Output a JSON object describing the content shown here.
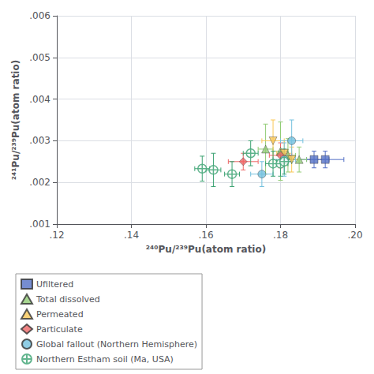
{
  "chart_data": {
    "type": "scatter",
    "xlabel": "²⁴⁰Pu/²³⁹Pu(atom ratio)",
    "ylabel": "²⁴¹Pu/²³⁹Pu(atom ratio)",
    "xlim": [
      0.12,
      0.2
    ],
    "ylim": [
      0.001,
      0.006
    ],
    "xticks": [
      {
        "value": 0.12,
        "label": ".12"
      },
      {
        "value": 0.14,
        "label": ".14"
      },
      {
        "value": 0.16,
        "label": ".16"
      },
      {
        "value": 0.18,
        "label": ".18"
      },
      {
        "value": 0.2,
        "label": ".20"
      }
    ],
    "yticks": [
      {
        "value": 0.001,
        "label": ".001"
      },
      {
        "value": 0.002,
        "label": ".002"
      },
      {
        "value": 0.003,
        "label": ".003"
      },
      {
        "value": 0.004,
        "label": ".004"
      },
      {
        "value": 0.005,
        "label": ".005"
      },
      {
        "value": 0.006,
        "label": ".006"
      }
    ],
    "grid": true,
    "legend": "bottom",
    "series": [
      {
        "name": "Ufiltered",
        "marker": "square",
        "x": [
          0.189,
          0.192
        ],
        "values": [
          0.00255,
          0.00255
        ],
        "xerr": [
          0.004,
          0.005
        ],
        "yerr": [
          0.0002,
          0.0002
        ]
      },
      {
        "name": "Total dissolved",
        "marker": "triangle-up",
        "x": [
          0.176,
          0.18,
          0.182,
          0.185
        ],
        "values": [
          0.0028,
          0.00275,
          0.00265,
          0.00255
        ],
        "xerr": [
          0.002,
          0.002,
          0.002,
          0.002
        ],
        "yerr": [
          0.0006,
          0.0007,
          0.0004,
          0.0003
        ]
      },
      {
        "name": "Permeated",
        "marker": "triangle-down",
        "x": [
          0.178,
          0.181,
          0.183
        ],
        "values": [
          0.003,
          0.0027,
          0.00255
        ],
        "xerr": [
          0.003,
          0.002,
          0.002
        ],
        "yerr": [
          0.0005,
          0.0003,
          0.0003
        ]
      },
      {
        "name": "Particulate",
        "marker": "diamond",
        "x": [
          0.17,
          0.18
        ],
        "values": [
          0.0025,
          0.00265
        ],
        "xerr": [
          0.004,
          0.003
        ],
        "yerr": [
          0.0002,
          0.0003
        ]
      },
      {
        "name": "Global fallout (Northern Hemisphere)",
        "marker": "circle",
        "x": [
          0.175,
          0.181,
          0.183
        ],
        "values": [
          0.0022,
          0.00255,
          0.003
        ],
        "xerr": [
          0.003,
          0.003,
          0.003
        ],
        "yerr": [
          0.0003,
          0.0004,
          0.0005
        ]
      },
      {
        "name": "Northern Estham soil (Ma, USA)",
        "marker": "circle-cross",
        "x": [
          0.159,
          0.162,
          0.167,
          0.172,
          0.178,
          0.18,
          0.181
        ],
        "values": [
          0.00233,
          0.0023,
          0.0022,
          0.0027,
          0.00245,
          0.00245,
          0.0025
        ],
        "xerr": [
          0.002,
          0.002,
          0.002,
          0.002,
          0.002,
          0.002,
          0.002
        ],
        "yerr": [
          0.0003,
          0.0004,
          0.0003,
          0.0003,
          0.0003,
          0.0003,
          0.0003
        ]
      }
    ]
  }
}
